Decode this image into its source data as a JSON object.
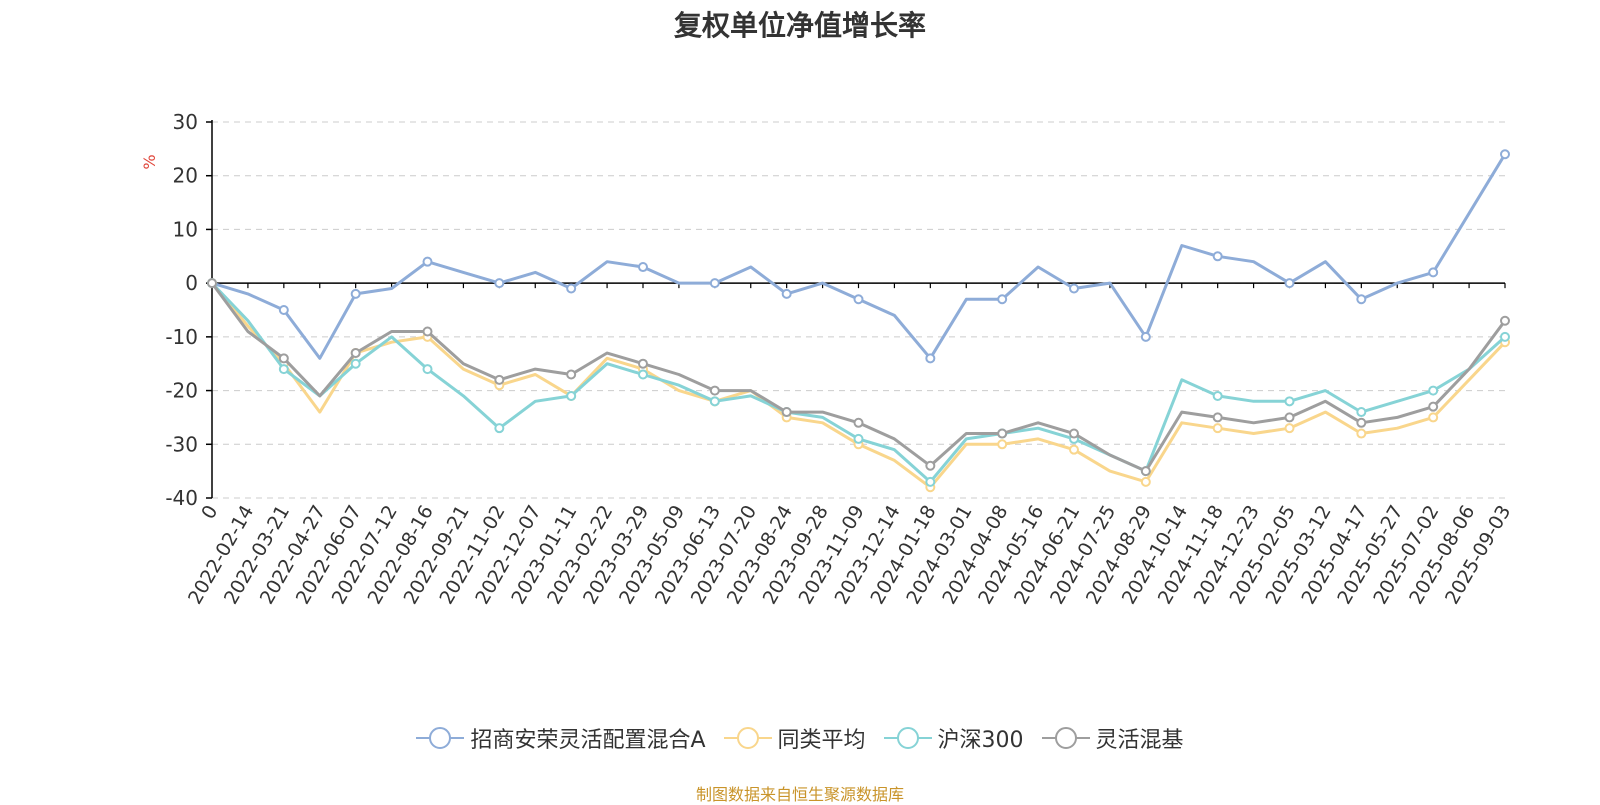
{
  "chart_data": {
    "type": "line",
    "title": "复权单位净值增长率",
    "ylabel": "%",
    "ylim": [
      -40,
      30
    ],
    "yticks": [
      30,
      20,
      10,
      0,
      -10,
      -20,
      -30,
      -40
    ],
    "grid": true,
    "legend_position": "bottom",
    "x_tick_labels": [
      "0",
      "2022-02-14",
      "2022-03-21",
      "2022-04-27",
      "2022-06-07",
      "2022-07-12",
      "2022-08-16",
      "2022-09-21",
      "2022-11-02",
      "2022-12-07",
      "2023-01-11",
      "2023-02-22",
      "2023-03-29",
      "2023-05-09",
      "2023-06-13",
      "2023-07-20",
      "2023-08-24",
      "2023-09-28",
      "2023-11-09",
      "2023-12-14",
      "2024-01-18",
      "2024-03-01",
      "2024-04-08",
      "2024-05-16",
      "2024-06-21",
      "2024-07-25",
      "2024-08-29",
      "2024-10-14",
      "2024-11-18",
      "2024-12-23",
      "2025-02-05",
      "2025-03-12",
      "2025-04-17",
      "2025-05-27",
      "2025-07-02",
      "2025-08-06",
      "2025-09-03"
    ],
    "x": [
      0,
      1,
      2,
      3,
      4,
      5,
      6,
      7,
      8,
      9,
      10,
      11,
      12,
      13,
      14,
      15,
      16,
      17,
      18,
      19,
      20,
      21,
      22,
      23,
      24,
      25,
      26,
      27,
      28,
      29,
      30,
      31,
      32,
      33,
      34,
      35,
      36
    ],
    "series": [
      {
        "name": "招商安荣灵活配置混合A",
        "color": "#8eacd8",
        "values": [
          0,
          -2,
          -5,
          -14,
          -2,
          -1,
          4,
          2,
          0,
          2,
          -1,
          4,
          3,
          0,
          0,
          3,
          -2,
          0,
          -3,
          -6,
          -14,
          -3,
          -3,
          3,
          -1,
          0,
          -10,
          7,
          5,
          4,
          0,
          4,
          -3,
          0,
          2,
          13,
          24
        ]
      },
      {
        "name": "同类平均",
        "color": "#f9d68c",
        "values": [
          0,
          -8,
          -15,
          -24,
          -13,
          -11,
          -10,
          -16,
          -19,
          -17,
          -21,
          -14,
          -16,
          -20,
          -22,
          -20,
          -25,
          -26,
          -30,
          -33,
          -38,
          -30,
          -30,
          -29,
          -31,
          -35,
          -37,
          -26,
          -27,
          -28,
          -27,
          -24,
          -28,
          -27,
          -25,
          -18,
          -11
        ]
      },
      {
        "name": "沪深300",
        "color": "#86d3d6",
        "values": [
          0,
          -7,
          -16,
          -21,
          -15,
          -10,
          -16,
          -21,
          -27,
          -22,
          -21,
          -15,
          -17,
          -19,
          -22,
          -21,
          -24,
          -25,
          -29,
          -31,
          -37,
          -29,
          -28,
          -27,
          -29,
          -32,
          -35,
          -18,
          -21,
          -22,
          -22,
          -20,
          -24,
          -22,
          -20,
          -16,
          -10
        ]
      },
      {
        "name": "灵活混基",
        "color": "#9e9e9e",
        "values": [
          0,
          -9,
          -14,
          -21,
          -13,
          -9,
          -9,
          -15,
          -18,
          -16,
          -17,
          -13,
          -15,
          -17,
          -20,
          -20,
          -24,
          -24,
          -26,
          -29,
          -34,
          -28,
          -28,
          -26,
          -28,
          -32,
          -35,
          -24,
          -25,
          -26,
          -25,
          -22,
          -26,
          -25,
          -23,
          -16,
          -7
        ]
      }
    ],
    "source_note": "制图数据来自恒生聚源数据库"
  },
  "colors": {
    "title": "#333333",
    "axis": "#000000",
    "grid": "#cccccc",
    "ylabel": "#e0463b",
    "source": "#c9942a"
  }
}
